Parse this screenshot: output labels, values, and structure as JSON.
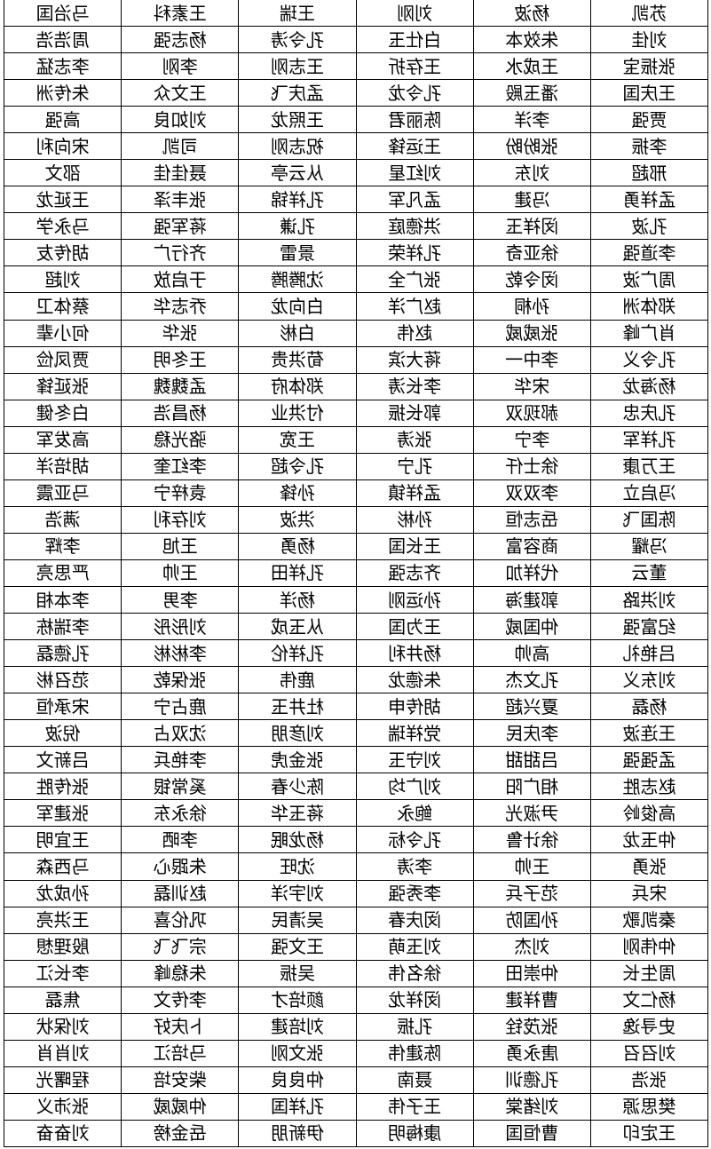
{
  "table": {
    "rows": [
      [
        "苏凯",
        "杨波",
        "刘刚",
        "王瑞",
        "王素科",
        "马治国"
      ],
      [
        "刘佳",
        "朱效本",
        "白仕玉",
        "孔令涛",
        "杨志强",
        "周浩浩"
      ],
      [
        "张振宝",
        "王成水",
        "王存折",
        "王志刚",
        "李刚",
        "李志猛"
      ],
      [
        "王庆国",
        "潘玉殿",
        "孔令龙",
        "孟庆飞",
        "王文众",
        "朱传洲"
      ],
      [
        "贾强",
        "李洋",
        "陈丽君",
        "王照龙",
        "刘如良",
        "高强"
      ],
      [
        "李振",
        "张盼盼",
        "王运锋",
        "祝志刚",
        "司凯",
        "宋向利"
      ],
      [
        "邢超",
        "刘东",
        "刘红星",
        "从云亭",
        "聂佳佳",
        "邵文"
      ],
      [
        "孟祥勇",
        "冯建",
        "孟凡军",
        "孔祥锦",
        "张丰泽",
        "王延龙"
      ],
      [
        "孔波",
        "闵祥玉",
        "洪德庭",
        "孔谦",
        "蒋军强",
        "马永学"
      ],
      [
        "李道强",
        "徐亚奇",
        "孔祥荣",
        "景雷",
        "齐行广",
        "胡传友"
      ],
      [
        "周广波",
        "闵令乾",
        "张广全",
        "沈腾腾",
        "于启放",
        "刘超"
      ],
      [
        "郑体洲",
        "孙桐",
        "赵广洋",
        "白向龙",
        "乔志华",
        "蔡体卫"
      ],
      [
        "肖广峰",
        "张威威",
        "赵伟",
        "白彬",
        "张华",
        "何小辈"
      ],
      [
        "孔令义",
        "李中一",
        "蒋大滨",
        "荀洪贵",
        "王冬明",
        "贾凤俭"
      ],
      [
        "杨海龙",
        "宋华",
        "李长涛",
        "郑体府",
        "孟魏魏",
        "张延锋"
      ],
      [
        "孔庆忠",
        "郝现双",
        "郭长振",
        "付洪业",
        "杨昌浩",
        "白冬健"
      ],
      [
        "孔祥军",
        "李宁",
        "张涛",
        "王宽",
        "骆光稳",
        "高发军"
      ],
      [
        "王万康",
        "徐士仟",
        "孔宁",
        "孔令超",
        "李红奎",
        "胡培洋"
      ],
      [
        "冯启立",
        "李双双",
        "孟祥镇",
        "孙锋",
        "袁梓宁",
        "马亚震"
      ],
      [
        "陈国飞",
        "岳志恒",
        "孙彬",
        "洪波",
        "刘存利",
        "满浩"
      ],
      [
        "冯耀",
        "商容富",
        "王长国",
        "杨勇",
        "王旭",
        "李辉"
      ],
      [
        "董云",
        "代祥加",
        "齐志强",
        "孔祥田",
        "王帅",
        "严思亮"
      ],
      [
        "刘洪路",
        "郭建海",
        "孙运刚",
        "杨洋",
        "李男",
        "李本相"
      ],
      [
        "纪富强",
        "仲国威",
        "王为国",
        "从玉成",
        "刘彤彤",
        "李瑞栋"
      ],
      [
        "吕艳礼",
        "高帅",
        "杨井利",
        "孔祥伦",
        "李彬彬",
        "孔德磊"
      ],
      [
        "刘东义",
        "孔文杰",
        "朱德龙",
        "鹿伟",
        "张保乾",
        "范召彬"
      ],
      [
        "杨磊",
        "夏兴超",
        "胡传申",
        "杜井玉",
        "鹿占宁",
        "宋承恒"
      ],
      [
        "王连波",
        "李庆民",
        "党祥瑞",
        "刘彦朋",
        "沈双占",
        "倪波"
      ],
      [
        "孟强强",
        "吕甜甜",
        "刘守玉",
        "张金虎",
        "李艳兵",
        "吕新文"
      ],
      [
        "赵志胜",
        "相广阳",
        "刘广均",
        "陈少春",
        "奚常银",
        "张传胜"
      ],
      [
        "高俊岭",
        "尹淑光",
        "鲍永",
        "蒋玉华",
        "徐永东",
        "张建军"
      ],
      [
        "仲玉龙",
        "徐计鲁",
        "孔令标",
        "杨龙眠",
        "李晒",
        "王宜明"
      ],
      [
        "张勇",
        "王帅",
        "李涛",
        "沈旺",
        "朱跟心",
        "马西森"
      ],
      [
        "宋兵",
        "范子兵",
        "李秀强",
        "刘宇洋",
        "赵训磊",
        "孙成龙"
      ],
      [
        "秦凯歌",
        "孙国防",
        "闵庆春",
        "吴清民",
        "巩伦喜",
        "王洪亮"
      ],
      [
        "仲伟刚",
        "刘杰",
        "刘玉萌",
        "王文强",
        "宗飞飞",
        "殷理想"
      ],
      [
        "周生长",
        "仲崇田",
        "徐名伟",
        "吴振",
        "朱稳峰",
        "李长江"
      ],
      [
        "杨仁文",
        "曹祥建",
        "闵祥龙",
        "颜培才",
        "李传文",
        "焦磊"
      ],
      [
        "史寻逸",
        "张茂铨",
        "孔振",
        "刘培建",
        "卜庆好",
        "刘保状"
      ],
      [
        "刘召召",
        "唐永勇",
        "陈建伟",
        "张文刚",
        "马培江",
        "刘肖肖"
      ],
      [
        "张浩",
        "孔德训",
        "聂南",
        "仲良良",
        "柴安培",
        "程曙光"
      ],
      [
        "樊思源",
        "刘绪棠",
        "王子伟",
        "孔祥国",
        "仲威威",
        "张沛义"
      ],
      [
        "王定印",
        "曹恒国",
        "康梅明",
        "伊新朋",
        "岳金榜",
        "刘奋奋"
      ]
    ]
  }
}
